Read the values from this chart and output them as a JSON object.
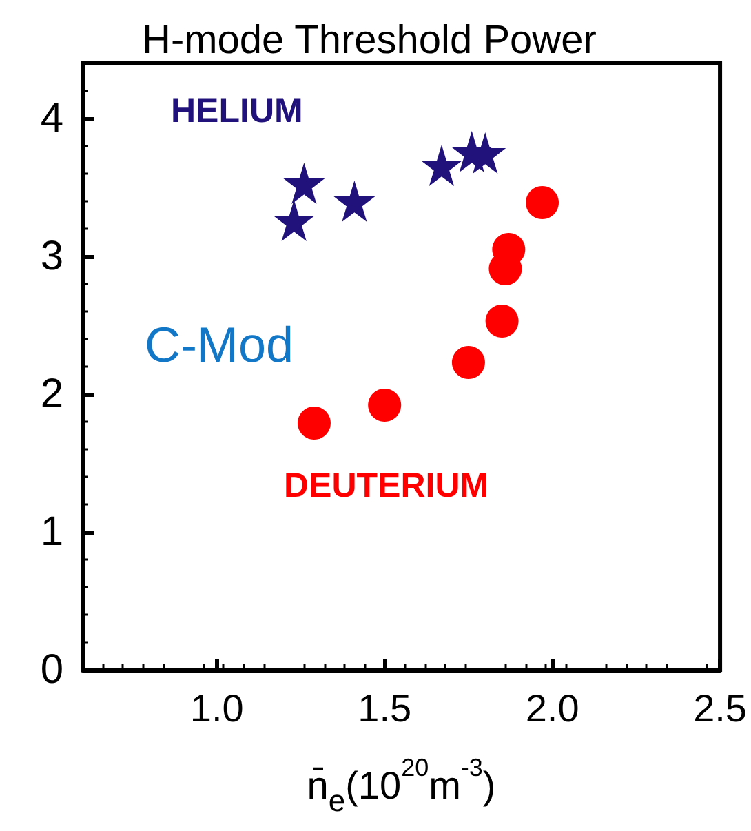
{
  "chart_data": {
    "type": "scatter",
    "title": "H-mode Threshold Power",
    "xlabel": "n̄$_{e}$(10$^{20}$m$^{-3}$)",
    "xlim": [
      0.6,
      2.5
    ],
    "xticks": [
      {
        "value": 1,
        "label": "1.0"
      },
      1.5,
      {
        "value": 2,
        "label": "2.0"
      },
      2.5
    ],
    "ylim": [
      0,
      4.4
    ],
    "yticks": [
      0,
      1,
      2,
      3,
      4
    ],
    "grid": false,
    "legend": false,
    "annotations": [
      "C-Mod"
    ],
    "series": [
      {
        "name": "HELIUM",
        "color": "#20127a",
        "marker": "star",
        "x": [
          1.26,
          1.23,
          1.41,
          1.67,
          1.76,
          1.8
        ],
        "values": [
          3.53,
          3.26,
          3.4,
          3.66,
          3.76,
          3.75
        ]
      },
      {
        "name": "DEUTERIUM",
        "color": "#ff0000",
        "marker": "circle",
        "x": [
          1.97,
          1.87,
          1.86,
          1.85,
          1.75,
          1.5,
          1.29
        ],
        "values": [
          3.39,
          3.05,
          2.91,
          2.53,
          2.23,
          1.92,
          1.79
        ]
      }
    ]
  }
}
